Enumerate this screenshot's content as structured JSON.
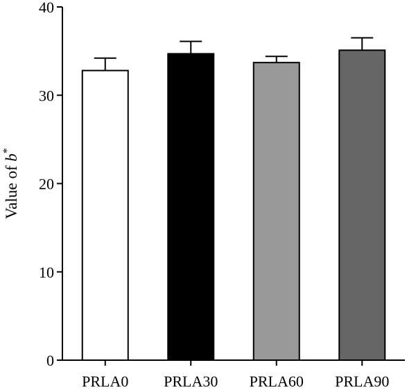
{
  "chart_data": {
    "type": "bar",
    "categories": [
      "PRLA0",
      "PRLA30",
      "PRLA60",
      "PRLA90"
    ],
    "values": [
      32.8,
      34.7,
      33.7,
      35.1
    ],
    "errors": [
      1.4,
      1.4,
      0.7,
      1.4
    ],
    "colors": [
      "#ffffff",
      "#000000",
      "#999999",
      "#666666"
    ],
    "ylabel_prefix": "Value of ",
    "ylabel_var": "b",
    "ylabel_sup": "*",
    "ylim": [
      0,
      40
    ],
    "yticks": [
      0,
      10,
      20,
      30,
      40
    ],
    "grid": false
  }
}
